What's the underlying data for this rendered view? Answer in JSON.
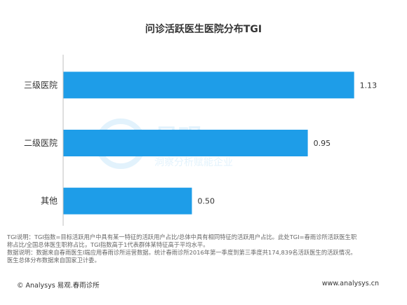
{
  "chart_data": {
    "type": "bar",
    "orientation": "horizontal",
    "title": "问诊活跃医生医院分布TGI",
    "categories": [
      "三级医院",
      "二级医院",
      "其他"
    ],
    "values": [
      1.13,
      0.95,
      0.5
    ],
    "value_labels": [
      "1.13",
      "0.95",
      "0.50"
    ],
    "xlim": [
      0,
      1.15
    ],
    "bar_color": "#1e9de8",
    "grid": false,
    "legend": "none"
  },
  "notes": {
    "line1": "TGI说明：TGI指数=目标活跃用户中具有某一特征的活跃用户占比/总体中具有相同特征的活跃用户占比。此处TGI=春雨诊所活跃医生职",
    "line2": "称占比/全国总体医生职称占比，TGI指数高于1代表群体某特征高于平均水平。",
    "line3": "数据说明：数据来自春雨医生I端应用春雨诊所运营数据。统计春雨诊所2016年第一季度到第三季度共174,839名活跃医生的活跃情况。",
    "line4": "医生总体分布数据来自国家卫计委。"
  },
  "footer": {
    "left": "© Analysys 易观.春雨诊所",
    "right": "www.analysys.cn"
  },
  "watermark": {
    "brand": "易观",
    "slogan": "洞察分析赋能企业"
  }
}
